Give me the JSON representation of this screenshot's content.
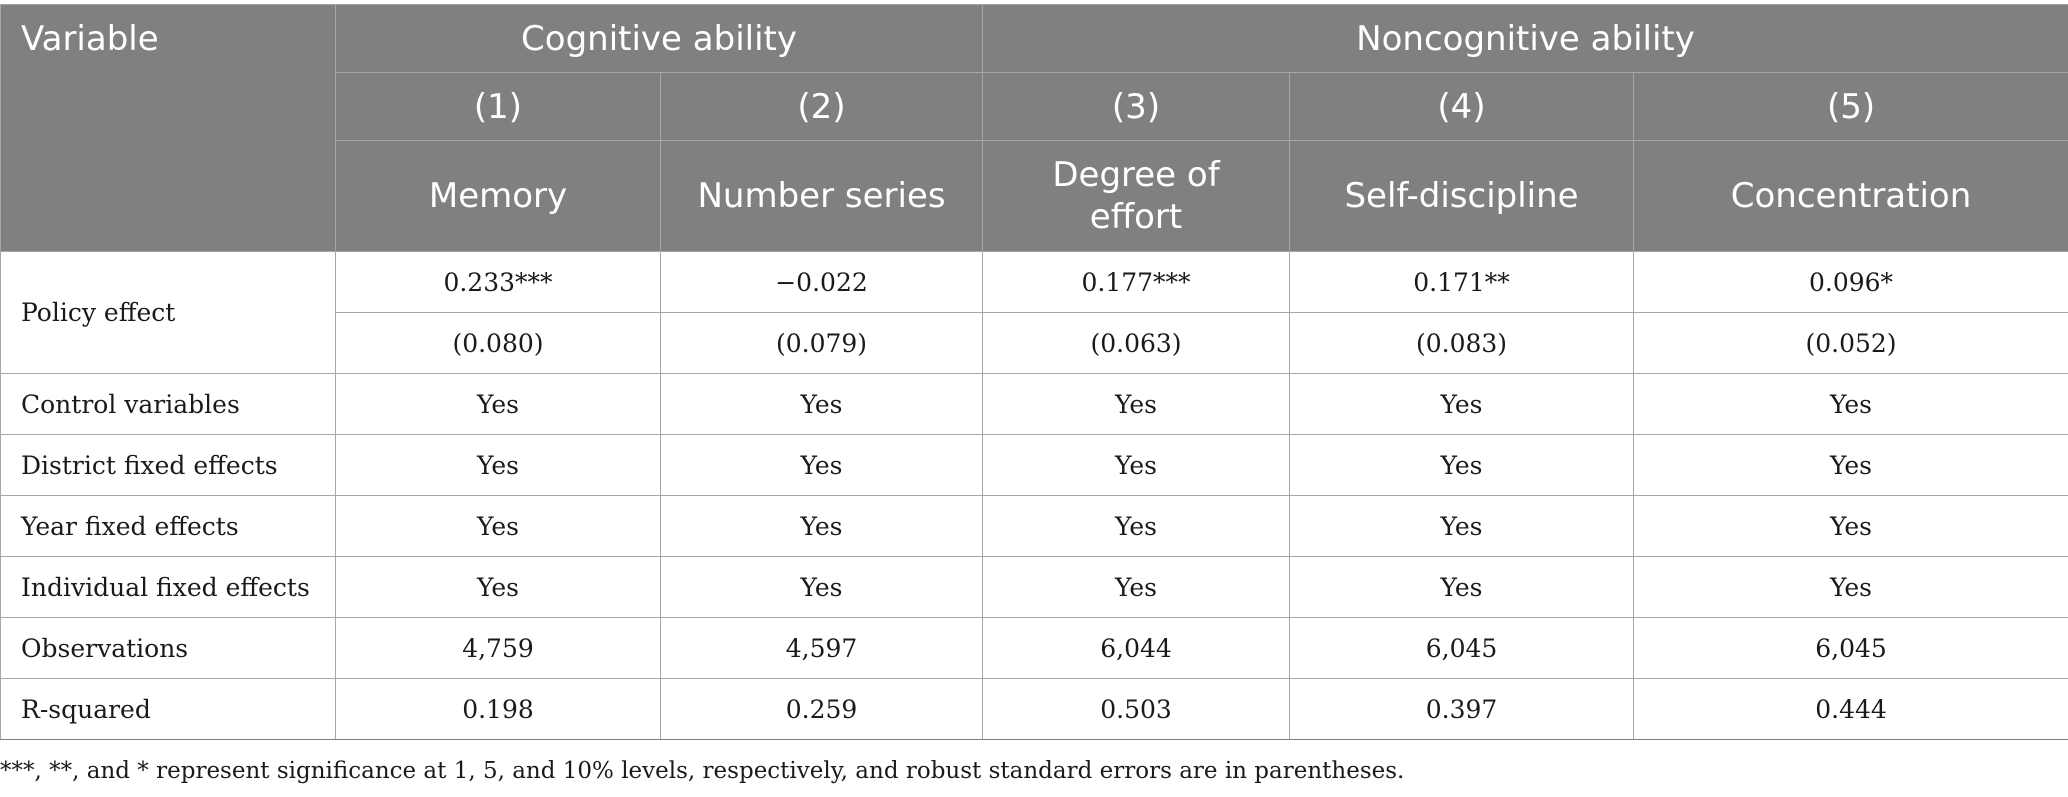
{
  "table": {
    "header": {
      "variable": "Variable",
      "group_cognitive": "Cognitive ability",
      "group_noncognitive": "Noncognitive ability",
      "numbers": [
        "(1)",
        "(2)",
        "(3)",
        "(4)",
        "(5)"
      ],
      "names": [
        "Memory",
        "Number series",
        "Degree of effort",
        "Self-discipline",
        "Concentration"
      ]
    },
    "policy_effect": {
      "label": "Policy effect",
      "coef": [
        "0.233***",
        "−0.022",
        "0.177***",
        "0.171**",
        "0.096*"
      ],
      "se": [
        "(0.080)",
        "(0.079)",
        "(0.063)",
        "(0.083)",
        "(0.052)"
      ]
    },
    "rows": [
      {
        "label": "Control variables",
        "values": [
          "Yes",
          "Yes",
          "Yes",
          "Yes",
          "Yes"
        ]
      },
      {
        "label": "District fixed effects",
        "values": [
          "Yes",
          "Yes",
          "Yes",
          "Yes",
          "Yes"
        ]
      },
      {
        "label": "Year fixed effects",
        "values": [
          "Yes",
          "Yes",
          "Yes",
          "Yes",
          "Yes"
        ]
      },
      {
        "label": "Individual fixed effects",
        "values": [
          "Yes",
          "Yes",
          "Yes",
          "Yes",
          "Yes"
        ]
      },
      {
        "label": "Observations",
        "values": [
          "4,759",
          "4,597",
          "6,044",
          "6,045",
          "6,045"
        ]
      },
      {
        "label": "R-squared",
        "values": [
          "0.198",
          "0.259",
          "0.503",
          "0.397",
          "0.444"
        ]
      }
    ]
  },
  "footnote": "***, **, and * represent significance at 1, 5, and 10% levels, respectively, and robust standard errors are in parentheses."
}
